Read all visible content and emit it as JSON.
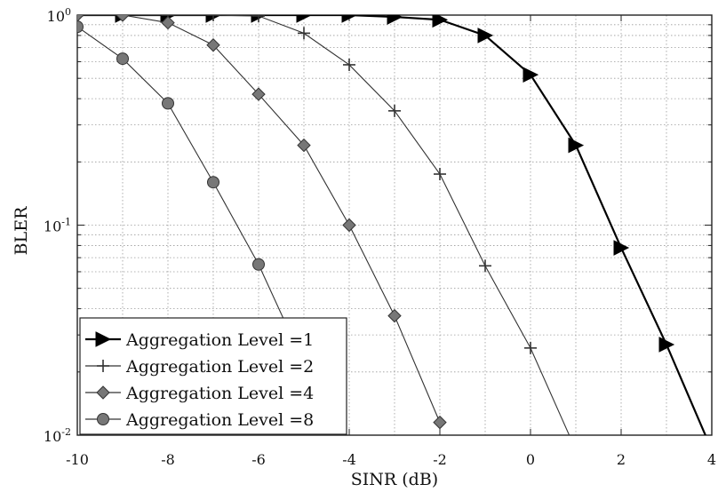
{
  "chart_data": {
    "type": "line",
    "xlabel": "SINR (dB)",
    "ylabel": "BLER",
    "xlim": [
      -10,
      4
    ],
    "ylim": [
      0.01,
      1
    ],
    "yscale": "log",
    "grid": true,
    "legend_position": "bottom-left",
    "x_ticks": [
      -10,
      -8,
      -6,
      -4,
      -2,
      0,
      2,
      4
    ],
    "x_tick_labels": [
      "-10",
      "-8",
      "-6",
      "-4",
      "-2",
      "0",
      "2",
      "4"
    ],
    "y_ticks": [
      0.01,
      0.1,
      1
    ],
    "y_tick_labels": [
      {
        "base": "10",
        "exp": "-2"
      },
      {
        "base": "10",
        "exp": "-1"
      },
      {
        "base": "10",
        "exp": "0"
      }
    ],
    "series": [
      {
        "name": "Aggregation Level =1",
        "marker": "triangle-right",
        "color": "#000000",
        "x": [
          -10,
          -9,
          -8,
          -7,
          -6,
          -5,
          -4,
          -3,
          -2,
          -1,
          0,
          1,
          2,
          3,
          4
        ],
        "y": [
          1.0,
          1.0,
          1.0,
          1.0,
          1.0,
          1.0,
          1.0,
          0.98,
          0.95,
          0.8,
          0.52,
          0.24,
          0.078,
          0.027,
          0.0085
        ]
      },
      {
        "name": "Aggregation Level =2",
        "marker": "plus",
        "color": "#333333",
        "x": [
          -10,
          -9,
          -8,
          -7,
          -6,
          -5,
          -4,
          -3,
          -2,
          -1,
          0,
          1
        ],
        "y": [
          1.0,
          1.0,
          1.0,
          1.0,
          0.99,
          0.82,
          0.58,
          0.35,
          0.175,
          0.064,
          0.026,
          0.0085
        ]
      },
      {
        "name": "Aggregation Level =4",
        "marker": "diamond",
        "color": "#333333",
        "x": [
          -10,
          -9,
          -8,
          -7,
          -6,
          -5,
          -4,
          -3,
          -2
        ],
        "y": [
          1.0,
          1.0,
          0.92,
          0.72,
          0.42,
          0.24,
          0.1,
          0.037,
          0.0115
        ]
      },
      {
        "name": "Aggregation Level =8",
        "marker": "circle",
        "color": "#333333",
        "x": [
          -10,
          -9,
          -8,
          -7,
          -6,
          -5
        ],
        "y": [
          0.88,
          0.62,
          0.38,
          0.16,
          0.065,
          0.022
        ]
      }
    ]
  }
}
